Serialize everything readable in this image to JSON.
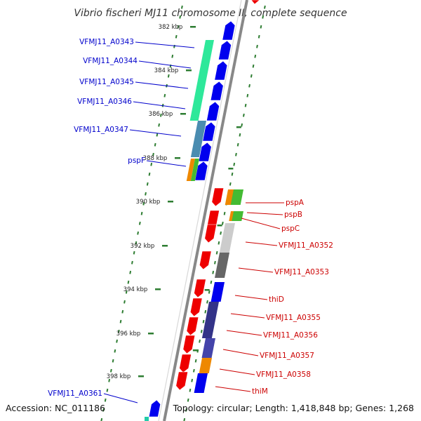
{
  "title": "Vibrio fischeri MJ11 chromosome II, complete sequence",
  "footer": {
    "accession": "Accession: NC_011186",
    "topology": "Topology: circular; Length: 1,418,848 bp; Genes: 1,268"
  },
  "colors": {
    "forward_label": "#0000cc",
    "reverse_label": "#cc0000",
    "backbone": "#888888",
    "tick_dots": "#2e7d32"
  },
  "scale": {
    "unit": "kbp",
    "ticks": [
      {
        "kbp": 382,
        "label": "382 kbp"
      },
      {
        "kbp": 384,
        "label": "384 kbp"
      },
      {
        "kbp": 386,
        "label": "386 kbp"
      },
      {
        "kbp": 388,
        "label": "388 kbp"
      },
      {
        "kbp": 390,
        "label": "390 kbp"
      },
      {
        "kbp": 392,
        "label": "392 kbp"
      },
      {
        "kbp": 394,
        "label": "394 kbp"
      },
      {
        "kbp": 396,
        "label": "396 kbp"
      },
      {
        "kbp": 398,
        "label": "398 kbp"
      }
    ]
  },
  "forward_genes": [
    {
      "label": "VFMJ11_A0343"
    },
    {
      "label": "VFMJ11_A0344"
    },
    {
      "label": "VFMJ11_A0345"
    },
    {
      "label": "VFMJ11_A0346"
    },
    {
      "label": "VFMJ11_A0347"
    },
    {
      "label": "pspF"
    },
    {
      "label": "VFMJ11_A0361"
    }
  ],
  "reverse_genes": [
    {
      "label": "pspA"
    },
    {
      "label": "pspB"
    },
    {
      "label": "pspC"
    },
    {
      "label": "VFMJ11_A0352"
    },
    {
      "label": "VFMJ11_A0353"
    },
    {
      "label": "thiD"
    },
    {
      "label": "VFMJ11_A0355"
    },
    {
      "label": "VFMJ11_A0356"
    },
    {
      "label": "VFMJ11_A0357"
    },
    {
      "label": "VFMJ11_A0358"
    },
    {
      "label": "thiM"
    }
  ]
}
